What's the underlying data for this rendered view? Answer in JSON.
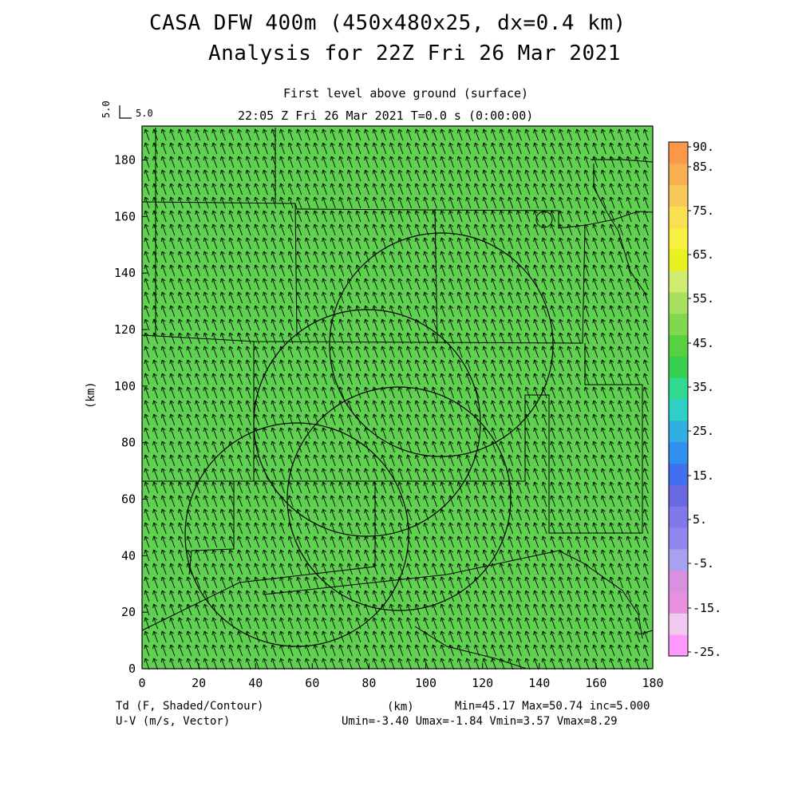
{
  "title_line1": "CASA DFW 400m (450x480x25, dx=0.4 km)",
  "title_line2": "Analysis for 22Z Fri 26 Mar 2021",
  "level_label": "First level above ground (surface)",
  "time_label": "22:05 Z Fri 26 Mar 2021    T=0.0 s (0:00:00)",
  "vector_scale": {
    "value_label": "5.0",
    "rotated_label": "5.0"
  },
  "axes": {
    "x_label": "(km)",
    "y_label": "(km)",
    "x_ticks": [
      "0",
      "20",
      "40",
      "60",
      "80",
      "100",
      "120",
      "140",
      "160",
      "180"
    ],
    "y_ticks": [
      "0",
      "20",
      "40",
      "60",
      "80",
      "100",
      "120",
      "140",
      "160",
      "180"
    ],
    "x_range": [
      0,
      180
    ],
    "y_range": [
      0,
      192
    ]
  },
  "footer": {
    "left_line1": "Td (F, Shaded/Contour)",
    "left_line2": "U-V (m/s, Vector)",
    "stats_line1": "Min=45.17 Max=50.74 inc=5.000",
    "stats_line2": "Umin=-3.40 Umax=-1.84 Vmin=3.57 Vmax=8.29"
  },
  "colorbar": {
    "labels": [
      "90.",
      "85.",
      "75.",
      "65.",
      "55.",
      "45.",
      "35.",
      "25.",
      "15.",
      "5.",
      "-5.",
      "-15.",
      "-25."
    ],
    "colors": [
      "#f9f",
      "#f0c8f0",
      "#e890e0",
      "#d890e0",
      "#a8a0f0",
      "#9088f0",
      "#8078e8",
      "#6868e0",
      "#4070f0",
      "#3090f0",
      "#30b0e0",
      "#30d0c8",
      "#30d890",
      "#38d050",
      "#58d040",
      "#80d850",
      "#a8e060",
      "#d0ec70",
      "#e8f020",
      "#f8f040",
      "#f8e050",
      "#f8c858",
      "#f8b050",
      "#f89848"
    ],
    "field_color": "#5fd04f"
  },
  "field": {
    "min": 45.17,
    "max": 50.74,
    "inc": 5.0,
    "u_range": [
      -3.4,
      -1.84
    ],
    "v_range": [
      3.57,
      8.29
    ]
  }
}
